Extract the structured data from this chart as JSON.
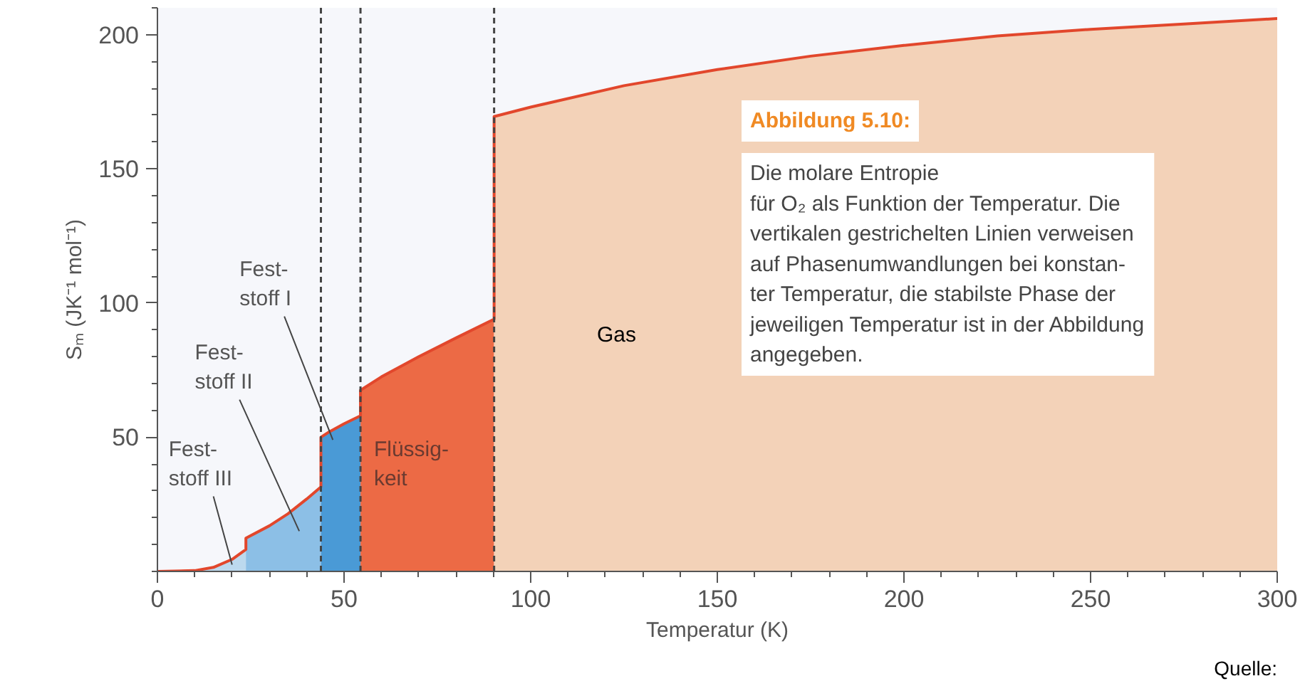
{
  "chart_data": {
    "type": "area",
    "xlabel": "Temperatur (K)",
    "ylabel": "Sₘ (JK⁻¹ mol⁻¹)",
    "xlim": [
      0,
      300
    ],
    "ylim": [
      0,
      210
    ],
    "xticks": [
      0,
      50,
      100,
      150,
      200,
      250,
      300
    ],
    "yticks": [
      50,
      100,
      150,
      200
    ],
    "grid": false,
    "series": [
      {
        "name": "Fest-\nstoff III",
        "color": "#bcd9ee",
        "x": [
          0,
          10,
          15,
          20,
          23.7
        ],
        "values": [
          0,
          0.3,
          1.5,
          4.5,
          8.2
        ]
      },
      {
        "name": "Fest-\nstoff II",
        "color": "#8cbfe6",
        "x": [
          23.7,
          30,
          35,
          40,
          43.8
        ],
        "values": [
          12.4,
          17,
          21.5,
          27,
          31.5
        ]
      },
      {
        "name": "Fest-\nstoff I",
        "color": "#4a9ad6",
        "x": [
          43.8,
          46,
          50,
          54.4
        ],
        "values": [
          50,
          52,
          55,
          58
        ]
      },
      {
        "name": "Flüssig-\nkeit",
        "color": "#ec6a45",
        "x": [
          54.4,
          60,
          70,
          80,
          90.2
        ],
        "values": [
          67.5,
          72.5,
          80,
          87,
          94
        ]
      },
      {
        "name": "Gas",
        "color": "#f3d2b8",
        "x": [
          90.2,
          100,
          125,
          150,
          175,
          200,
          225,
          250,
          275,
          300
        ],
        "values": [
          169.5,
          173,
          181,
          187,
          192,
          196,
          199.5,
          202,
          204,
          206
        ]
      },
      {
        "type": "line",
        "color": "#e2472c",
        "x": [
          0,
          10,
          15,
          20,
          23.7,
          23.7,
          30,
          35,
          40,
          43.8,
          43.8,
          46,
          50,
          54.4,
          54.4,
          60,
          70,
          80,
          90.2,
          90.2,
          100,
          125,
          150,
          175,
          200,
          225,
          250,
          275,
          300
        ],
        "values": [
          0,
          0.3,
          1.5,
          4.5,
          8.2,
          12.4,
          17,
          21.5,
          27,
          31.5,
          50,
          52,
          55,
          58,
          67.5,
          72.5,
          80,
          87,
          94,
          169.5,
          173,
          181,
          187,
          192,
          196,
          199.5,
          202,
          204,
          206
        ]
      }
    ],
    "ref_lines": [
      {
        "axis": "x",
        "value": 43.8,
        "line_style": "dashed",
        "color": "#444444"
      },
      {
        "axis": "x",
        "value": 54.4,
        "line_style": "dashed",
        "color": "#444444"
      },
      {
        "axis": "x",
        "value": 90.2,
        "line_style": "dashed",
        "color": "#444444"
      }
    ],
    "annotations": [
      "Abbildung 5.10:",
      "Die molare Entropie\nfür O₂ als Funktion der Temperatur. Die\nvertikalen gestrichelten Linien verweisen\nauf Phasenumwandlungen bei konstan-\nter Temperatur, die stabilste Phase der\njeweiligen Temperatur ist in der Abbildung\nangegeben.",
      "Quelle:"
    ]
  }
}
